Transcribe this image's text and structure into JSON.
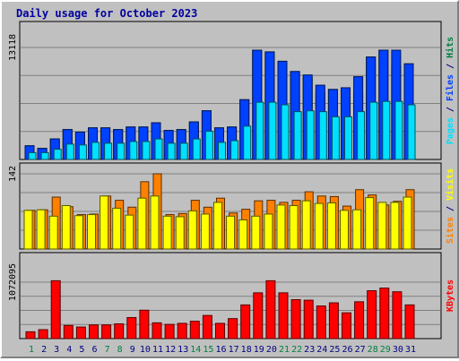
{
  "colors": {
    "hits": "#00e0ff",
    "files": "#0040ff",
    "pages": "#008040",
    "visits": "#ffff00",
    "sites": "#ff8000",
    "kbytes": "#ff0000",
    "title": "#0000a0",
    "weekend_day": "#008040",
    "weekday": "#000080"
  },
  "chart_data": {
    "type": "bar",
    "title": "Daily usage for October 2023",
    "days": [
      "1",
      "2",
      "3",
      "4",
      "5",
      "6",
      "7",
      "8",
      "9",
      "10",
      "11",
      "12",
      "13",
      "14",
      "15",
      "16",
      "17",
      "18",
      "19",
      "20",
      "21",
      "22",
      "23",
      "24",
      "25",
      "26",
      "27",
      "28",
      "29",
      "30",
      "31"
    ],
    "weekend_days": [
      1,
      7,
      8,
      14,
      15,
      21,
      22,
      28,
      29
    ],
    "panels": [
      {
        "name": "hits_files_pages",
        "axis_max_label": "13118",
        "ymax": 13118,
        "label_parts": [
          {
            "text": "Pages",
            "color_key": "hits"
          },
          {
            "text": " / ",
            "color_key": "weekday"
          },
          {
            "text": "Files",
            "color_key": "files"
          },
          {
            "text": " / ",
            "color_key": "weekday"
          },
          {
            "text": "Hits",
            "color_key": "pages"
          }
        ],
        "series": [
          {
            "key": "pages",
            "values": [
              1600,
              1300,
              2400,
              3500,
              3200,
              3700,
              3700,
              3500,
              3800,
              3800,
              4300,
              3400,
              3500,
              4400,
              5700,
              3700,
              3800,
              7000,
              12800,
              12600,
              11500,
              10300,
              9600,
              7800,
              8200,
              6200,
              7800,
              12000,
              12800,
              11000,
              11200
            ]
          },
          {
            "key": "files",
            "values": [
              1600,
              1300,
              2400,
              3500,
              3200,
              3700,
              3700,
              3500,
              3800,
              3800,
              4300,
              3400,
              3500,
              4400,
              5700,
              3700,
              3800,
              7000,
              12800,
              12600,
              11500,
              10300,
              9900,
              8700,
              8200,
              8400,
              9700,
              12000,
              12800,
              12800,
              11200
            ]
          },
          {
            "key": "hits",
            "values": [
              800,
              800,
              1200,
              1800,
              1700,
              2000,
              1900,
              1900,
              2100,
              2100,
              2400,
              1900,
              1900,
              2400,
              3300,
              2000,
              2200,
              3900,
              6700,
              6700,
              6400,
              5600,
              5700,
              5600,
              5000,
              5000,
              5600,
              6700,
              6800,
              6800,
              6400
            ]
          }
        ]
      },
      {
        "name": "sites_visits",
        "axis_max_label": "142",
        "ymax": 142,
        "label_parts": [
          {
            "text": "Sites",
            "color_key": "sites"
          },
          {
            "text": " / ",
            "color_key": "weekday"
          },
          {
            "text": "Visits",
            "color_key": "visits"
          }
        ],
        "series": [
          {
            "key": "sites",
            "values": [
              73,
              74,
              98,
              80,
              65,
              66,
              100,
              92,
              79,
              127,
              142,
              65,
              67,
              92,
              79,
              96,
              68,
              75,
              91,
              92,
              88,
              92,
              108,
              100,
              99,
              81,
              112,
              102,
              83,
              90,
              112
            ]
          },
          {
            "key": "visits",
            "values": [
              73,
              74,
              62,
              82,
              63,
              65,
              100,
              77,
              64,
              96,
              100,
              62,
              61,
              72,
              66,
              88,
              62,
              55,
              62,
              66,
              83,
              82,
              91,
              86,
              87,
              73,
              74,
              97,
              88,
              88,
              98
            ]
          }
        ]
      },
      {
        "name": "kbytes",
        "axis_max_label": "1072095",
        "ymax": 1072095,
        "label_parts": [
          {
            "text": "KBytes",
            "color_key": "kbytes"
          }
        ],
        "series": [
          {
            "key": "kbytes",
            "values": [
              130000,
              170000,
              1100000,
              250000,
              220000,
              260000,
              260000,
              280000,
              400000,
              540000,
              300000,
              270000,
              290000,
              330000,
              440000,
              290000,
              380000,
              640000,
              870000,
              1100000,
              870000,
              740000,
              730000,
              620000,
              680000,
              490000,
              700000,
              910000,
              960000,
              890000,
              640000
            ]
          }
        ]
      }
    ]
  }
}
